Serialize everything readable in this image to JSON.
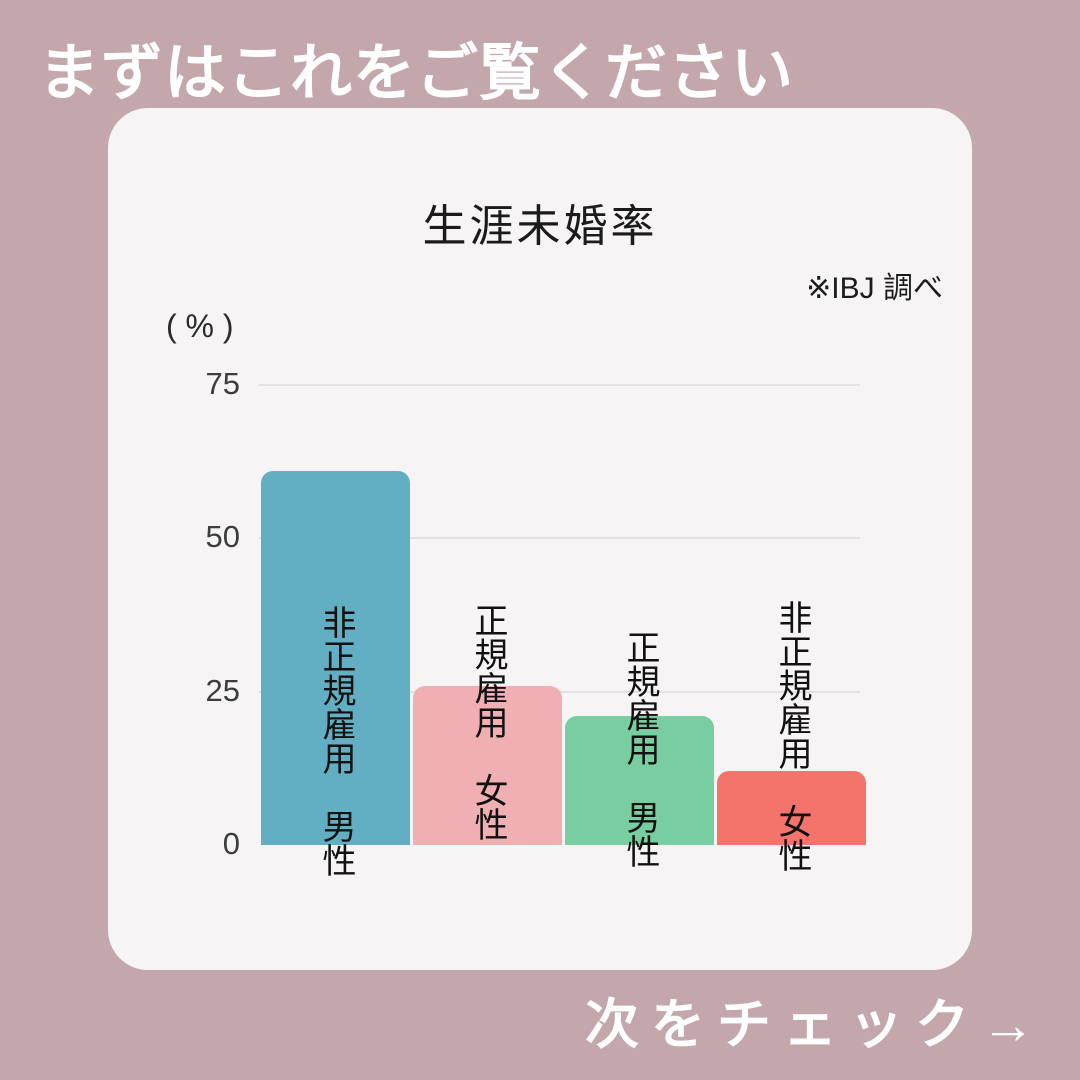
{
  "page": {
    "header": "まずはこれをご覧ください",
    "footer": "次をチェック→",
    "background_color": "#c3a7ab",
    "card_color": "#f6f4f5"
  },
  "chart_data": {
    "type": "bar",
    "title": "生涯未婚率",
    "source_note": "※IBJ 調べ",
    "y_unit_label": "( % )",
    "xlabel": "",
    "ylabel": "%",
    "ylim": [
      0,
      80
    ],
    "yticks": [
      0,
      25,
      50,
      75
    ],
    "grid": true,
    "legend_position": "none",
    "categories": [
      "非正規雇用 男性",
      "正規雇用 女性",
      "正規雇用 男性",
      "非正規雇用 女性"
    ],
    "values": [
      61,
      26,
      21,
      12
    ],
    "bars": [
      {
        "label": "非正規雇用　男性",
        "value": 61,
        "color": "#62afc4"
      },
      {
        "label": "正規雇用　女性",
        "value": 26,
        "color": "#f0b0b3"
      },
      {
        "label": "正規雇用　男性",
        "value": 21,
        "color": "#78cea0"
      },
      {
        "label": "非正規雇用　女性",
        "value": 12,
        "color": "#f4746b"
      }
    ],
    "gridline_color": "#e3e1e2",
    "tick_color": "#3d3d3d"
  }
}
